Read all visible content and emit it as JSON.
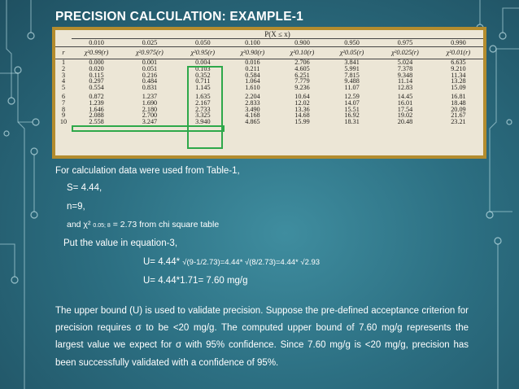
{
  "title": "PRECISION CALCULATION: EXAMPLE-1",
  "table": {
    "caption": "P(X ≤ x)",
    "probabilities": [
      "0.010",
      "0.025",
      "0.050",
      "0.100",
      "0.900",
      "0.950",
      "0.975",
      "0.990"
    ],
    "row_header": "r",
    "column_headers": [
      "χ²0.99(r)",
      "χ²0.975(r)",
      "χ²0.95(r)",
      "χ²0.90(r)",
      "χ²0.10(r)",
      "χ²0.05(r)",
      "χ²0.025(r)",
      "χ²0.01(r)"
    ],
    "rows": [
      {
        "r": "1",
        "values": [
          "0.000",
          "0.001",
          "0.004",
          "0.016",
          "2.706",
          "3.841",
          "5.024",
          "6.635"
        ]
      },
      {
        "r": "2",
        "values": [
          "0.020",
          "0.051",
          "0.103",
          "0.211",
          "4.605",
          "5.991",
          "7.378",
          "9.210"
        ]
      },
      {
        "r": "3",
        "values": [
          "0.115",
          "0.216",
          "0.352",
          "0.584",
          "6.251",
          "7.815",
          "9.348",
          "11.34"
        ]
      },
      {
        "r": "4",
        "values": [
          "0.297",
          "0.484",
          "0.711",
          "1.064",
          "7.779",
          "9.488",
          "11.14",
          "13.28"
        ]
      },
      {
        "r": "5",
        "values": [
          "0.554",
          "0.831",
          "1.145",
          "1.610",
          "9.236",
          "11.07",
          "12.83",
          "15.09"
        ]
      },
      {
        "r": "6",
        "values": [
          "0.872",
          "1.237",
          "1.635",
          "2.204",
          "10.64",
          "12.59",
          "14.45",
          "16.81"
        ]
      },
      {
        "r": "7",
        "values": [
          "1.239",
          "1.690",
          "2.167",
          "2.833",
          "12.02",
          "14.07",
          "16.01",
          "18.48"
        ]
      },
      {
        "r": "8",
        "values": [
          "1.646",
          "2.180",
          "2.733",
          "3.490",
          "13.36",
          "15.51",
          "17.54",
          "20.09"
        ]
      },
      {
        "r": "9",
        "values": [
          "2.088",
          "2.700",
          "3.325",
          "4.168",
          "14.68",
          "16.92",
          "19.02",
          "21.67"
        ]
      },
      {
        "r": "10",
        "values": [
          "2.558",
          "3.247",
          "3.940",
          "4.865",
          "15.99",
          "18.31",
          "20.48",
          "23.21"
        ]
      }
    ],
    "highlight_color": "#2ea84a"
  },
  "body": {
    "intro": "For calculation data were used from Table-1,",
    "s_value": "S= 4.44,",
    "n_value": "n=9,",
    "chi_prefix": "and χ²",
    "chi_subscript": "0.05; 8",
    "chi_suffix": " = 2.73 from chi square table",
    "put_value": "Put the value in equation-3,",
    "eq1_lead": "U= 4.44* ",
    "eq1_rest": "√(9-1/2.73)=4.44* √(8/2.73)=4.44* √2.93",
    "eq2": "U= 4.44*1.71= 7.60 mg/g",
    "paragraph": "The upper bound (U) is used to validate precision. Suppose the pre-defined acceptance criterion for precision requires σ to be <20 mg/g. The computed upper bound of 7.60 mg/g represents the largest value we expect for σ with 95% confidence. Since 7.60 mg/g is <20 mg/g, precision has been successfully validated with a confidence of 95%."
  },
  "colors": {
    "background": "#2c6f82",
    "table_border": "#b38c2e",
    "table_paper": "#ece6d6",
    "text": "#ffffff"
  }
}
